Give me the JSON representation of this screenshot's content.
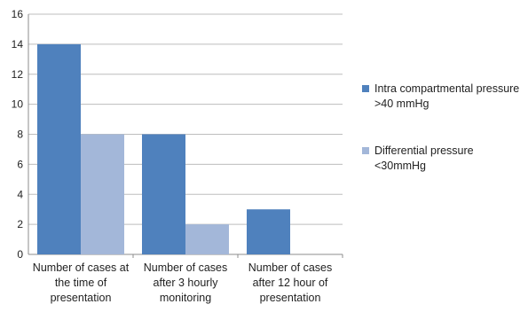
{
  "chart_data": {
    "type": "bar",
    "categories": [
      [
        "Number of cases at",
        "the time of",
        "presentation"
      ],
      [
        "Number of cases",
        "after 3 hourly",
        "monitoring"
      ],
      [
        "Number of cases",
        "after 12 hour of",
        "presentation"
      ]
    ],
    "series": [
      {
        "name": "Intra compartmental pressure >40 mmHg",
        "name_lines": [
          "Intra compartmental pressure",
          ">40 mmHg"
        ],
        "values": [
          14,
          8,
          3
        ],
        "color": "#4F81BD"
      },
      {
        "name": "Differential pressure <30mmHg",
        "name_lines": [
          "Differential pressure",
          "<30mmHg"
        ],
        "values": [
          8,
          2,
          0
        ],
        "color": "#A3B7D9"
      }
    ],
    "ylim": [
      0,
      16
    ],
    "yticks": [
      0,
      2,
      4,
      6,
      8,
      10,
      12,
      14,
      16
    ],
    "grid": true,
    "legend_position": "right"
  }
}
